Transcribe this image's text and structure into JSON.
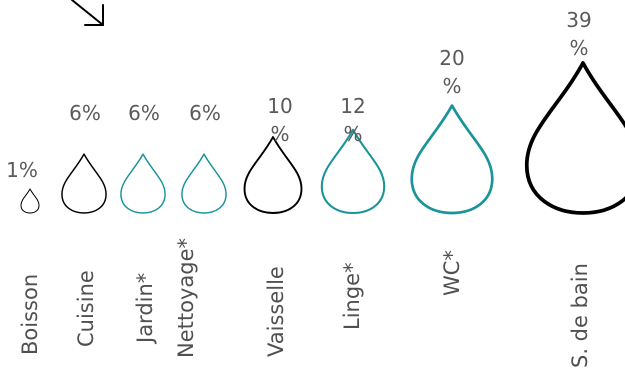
{
  "colors": {
    "standard": "#000000",
    "highlight": "#1a9499",
    "text": "#5a5a5a",
    "arrow": "#000000"
  },
  "icons": {
    "drop": "water-drop-icon",
    "arrow": "arrow-down-right-icon"
  },
  "chart_data": {
    "type": "bar",
    "mark": "water-drop",
    "title": "",
    "xlabel": "",
    "ylabel": "",
    "categories": [
      "Boisson",
      "Cuisine",
      "Jardin*",
      "Nettoyage*",
      "Vaisselle",
      "Linge*",
      "WC*",
      "S. de bain"
    ],
    "values": [
      1,
      6,
      6,
      6,
      10,
      12,
      20,
      39
    ],
    "value_labels": [
      "1%",
      "6%",
      "6%",
      "6%",
      "10 %",
      "12 %",
      "20 %",
      "39 %"
    ],
    "highlighted": [
      false,
      false,
      true,
      true,
      false,
      true,
      true,
      false
    ]
  }
}
